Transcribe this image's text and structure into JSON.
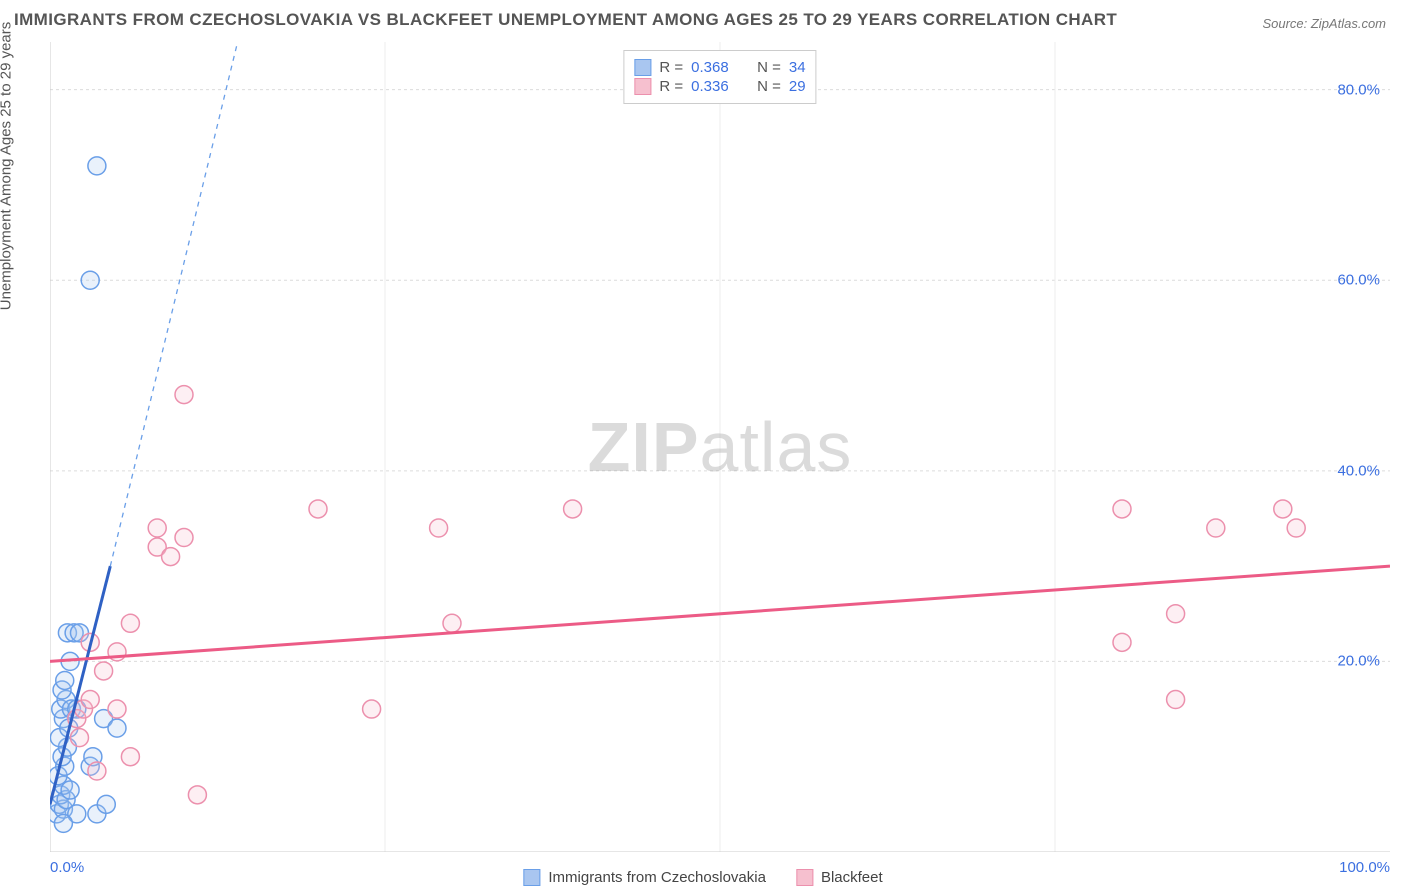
{
  "title": "IMMIGRANTS FROM CZECHOSLOVAKIA VS BLACKFEET UNEMPLOYMENT AMONG AGES 25 TO 29 YEARS CORRELATION CHART",
  "source": "Source: ZipAtlas.com",
  "ylabel": "Unemployment Among Ages 25 to 29 years",
  "watermark_zip": "ZIP",
  "watermark_atlas": "atlas",
  "chart": {
    "type": "scatter",
    "background_color": "#ffffff",
    "grid_color": "#dcdcdc",
    "axis_color": "#cccccc",
    "xlim": [
      0,
      100
    ],
    "ylim": [
      0,
      85
    ],
    "x_ticks": [
      0,
      100
    ],
    "x_tick_labels": [
      "0.0%",
      "100.0%"
    ],
    "y_ticks": [
      20,
      40,
      60,
      80
    ],
    "y_tick_labels": [
      "20.0%",
      "40.0%",
      "60.0%",
      "80.0%"
    ],
    "x_minor_divisions": 4,
    "tick_label_color": "#3b6fe0",
    "tick_label_fontsize": 15,
    "title_fontsize": 17,
    "title_color": "#555555",
    "marker_radius": 9,
    "marker_fill_opacity": 0.25,
    "marker_stroke_width": 1.5,
    "trend_line_width": 3,
    "trend_dash_width": 1.3
  },
  "series": [
    {
      "key": "czechoslovakia",
      "name": "Immigrants from Czechoslovakia",
      "color_fill": "#a9c6f0",
      "color_stroke": "#6a9fe8",
      "r_value": "0.368",
      "n_value": "34",
      "trend_solid": {
        "x1": 0,
        "y1": 5,
        "x2": 4.5,
        "y2": 30,
        "color": "#2f61c4"
      },
      "trend_dash": {
        "x1": 4.5,
        "y1": 30,
        "x2": 14,
        "y2": 85,
        "color": "#6a9fe8"
      },
      "points": [
        {
          "x": 0.5,
          "y": 4
        },
        {
          "x": 0.7,
          "y": 5
        },
        {
          "x": 1.0,
          "y": 4.5
        },
        {
          "x": 0.8,
          "y": 6
        },
        {
          "x": 1.2,
          "y": 5.5
        },
        {
          "x": 1.0,
          "y": 7
        },
        {
          "x": 1.5,
          "y": 6.5
        },
        {
          "x": 0.6,
          "y": 8
        },
        {
          "x": 1.1,
          "y": 9
        },
        {
          "x": 0.9,
          "y": 10
        },
        {
          "x": 1.3,
          "y": 11
        },
        {
          "x": 0.7,
          "y": 12
        },
        {
          "x": 1.0,
          "y": 14
        },
        {
          "x": 1.4,
          "y": 13
        },
        {
          "x": 0.8,
          "y": 15
        },
        {
          "x": 1.2,
          "y": 16
        },
        {
          "x": 1.6,
          "y": 15
        },
        {
          "x": 0.9,
          "y": 17
        },
        {
          "x": 1.1,
          "y": 18
        },
        {
          "x": 2.0,
          "y": 15
        },
        {
          "x": 1.5,
          "y": 20
        },
        {
          "x": 1.3,
          "y": 23
        },
        {
          "x": 1.8,
          "y": 23
        },
        {
          "x": 2.2,
          "y": 23
        },
        {
          "x": 4.0,
          "y": 14
        },
        {
          "x": 3.5,
          "y": 4
        },
        {
          "x": 4.2,
          "y": 5
        },
        {
          "x": 3.0,
          "y": 9
        },
        {
          "x": 3.2,
          "y": 10
        },
        {
          "x": 5.0,
          "y": 13
        },
        {
          "x": 3.0,
          "y": 60
        },
        {
          "x": 3.5,
          "y": 72
        },
        {
          "x": 2.0,
          "y": 4
        },
        {
          "x": 1.0,
          "y": 3
        }
      ]
    },
    {
      "key": "blackfeet",
      "name": "Blackfeet",
      "color_fill": "#f6c0cf",
      "color_stroke": "#ec90ad",
      "r_value": "0.336",
      "n_value": "29",
      "trend_solid": {
        "x1": 0,
        "y1": 20,
        "x2": 100,
        "y2": 30,
        "color": "#ec5b86"
      },
      "trend_dash": null,
      "points": [
        {
          "x": 2,
          "y": 14
        },
        {
          "x": 2.5,
          "y": 15
        },
        {
          "x": 3,
          "y": 16
        },
        {
          "x": 3,
          "y": 22
        },
        {
          "x": 4,
          "y": 19
        },
        {
          "x": 5,
          "y": 15
        },
        {
          "x": 5,
          "y": 21
        },
        {
          "x": 6,
          "y": 10
        },
        {
          "x": 6,
          "y": 24
        },
        {
          "x": 8,
          "y": 32
        },
        {
          "x": 8,
          "y": 34
        },
        {
          "x": 9,
          "y": 31
        },
        {
          "x": 10,
          "y": 33
        },
        {
          "x": 10,
          "y": 48
        },
        {
          "x": 11,
          "y": 6
        },
        {
          "x": 20,
          "y": 36
        },
        {
          "x": 24,
          "y": 15
        },
        {
          "x": 29,
          "y": 34
        },
        {
          "x": 30,
          "y": 24
        },
        {
          "x": 39,
          "y": 36
        },
        {
          "x": 80,
          "y": 36
        },
        {
          "x": 80,
          "y": 22
        },
        {
          "x": 84,
          "y": 25
        },
        {
          "x": 84,
          "y": 16
        },
        {
          "x": 87,
          "y": 34
        },
        {
          "x": 92,
          "y": 36
        },
        {
          "x": 93,
          "y": 34
        },
        {
          "x": 3.5,
          "y": 8.5
        },
        {
          "x": 2.2,
          "y": 12
        }
      ]
    }
  ],
  "legend_box": {
    "r_label": "R =",
    "n_label": "N ="
  },
  "bottom_legend": {
    "items": [
      {
        "series_idx": 0
      },
      {
        "series_idx": 1
      }
    ]
  }
}
